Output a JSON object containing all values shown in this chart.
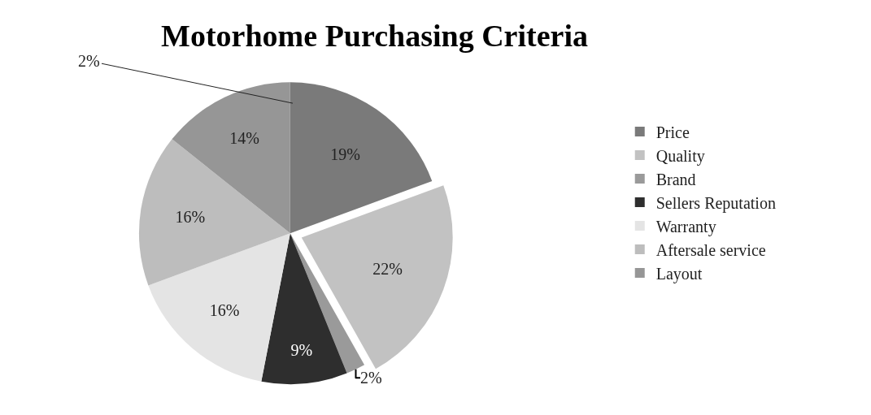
{
  "chart_data": {
    "type": "pie",
    "title": "Motorhome Purchasing Criteria",
    "categories": [
      "Price",
      "Quality",
      "Brand",
      "Sellers Reputation",
      "Warranty",
      "Aftersale service",
      "Layout"
    ],
    "values": [
      19,
      22,
      2,
      9,
      16,
      16,
      14
    ],
    "value_labels": [
      "19%",
      "22%",
      "2%",
      "9%",
      "16%",
      "16%",
      "14%"
    ],
    "colors": [
      "#7a7a7a",
      "#c2c2c2",
      "#9a9a9a",
      "#2e2e2e",
      "#e4e4e4",
      "#bdbdbd",
      "#969696"
    ],
    "annotations": [
      "2%"
    ],
    "legend": "right"
  }
}
